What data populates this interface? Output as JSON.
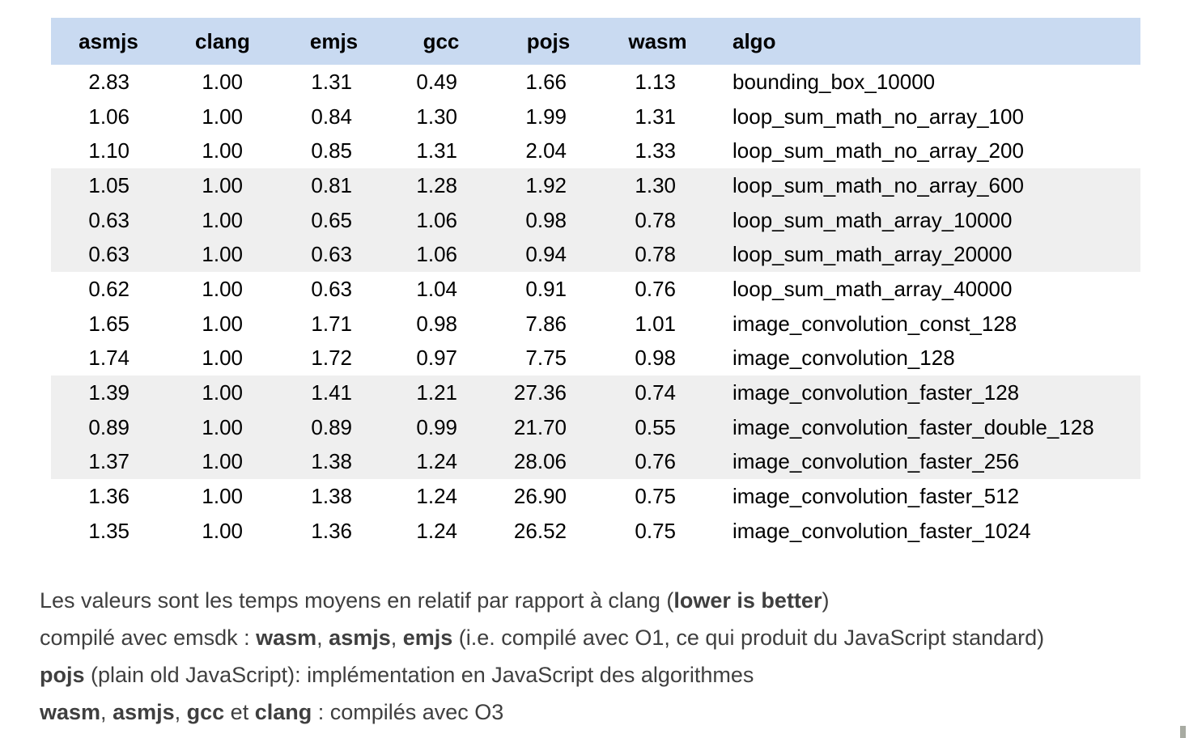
{
  "table": {
    "columns": [
      {
        "label": "asmjs",
        "kind": "num"
      },
      {
        "label": "clang",
        "kind": "num"
      },
      {
        "label": "emjs",
        "kind": "num"
      },
      {
        "label": "gcc",
        "kind": "num"
      },
      {
        "label": "pojs",
        "kind": "num"
      },
      {
        "label": "wasm",
        "kind": "num"
      },
      {
        "label": "algo",
        "kind": "text"
      }
    ],
    "rows": [
      {
        "values": [
          "2.83",
          "1.00",
          "1.31",
          "0.49",
          "1.66",
          "1.13"
        ],
        "algo": "bounding_box_10000",
        "shaded": false
      },
      {
        "values": [
          "1.06",
          "1.00",
          "0.84",
          "1.30",
          "1.99",
          "1.31"
        ],
        "algo": "loop_sum_math_no_array_100",
        "shaded": false
      },
      {
        "values": [
          "1.10",
          "1.00",
          "0.85",
          "1.31",
          "2.04",
          "1.33"
        ],
        "algo": "loop_sum_math_no_array_200",
        "shaded": false
      },
      {
        "values": [
          "1.05",
          "1.00",
          "0.81",
          "1.28",
          "1.92",
          "1.30"
        ],
        "algo": "loop_sum_math_no_array_600",
        "shaded": true
      },
      {
        "values": [
          "0.63",
          "1.00",
          "0.65",
          "1.06",
          "0.98",
          "0.78"
        ],
        "algo": "loop_sum_math_array_10000",
        "shaded": true
      },
      {
        "values": [
          "0.63",
          "1.00",
          "0.63",
          "1.06",
          "0.94",
          "0.78"
        ],
        "algo": "loop_sum_math_array_20000",
        "shaded": true
      },
      {
        "values": [
          "0.62",
          "1.00",
          "0.63",
          "1.04",
          "0.91",
          "0.76"
        ],
        "algo": "loop_sum_math_array_40000",
        "shaded": false
      },
      {
        "values": [
          "1.65",
          "1.00",
          "1.71",
          "0.98",
          "7.86",
          "1.01"
        ],
        "algo": "image_convolution_const_128",
        "shaded": false
      },
      {
        "values": [
          "1.74",
          "1.00",
          "1.72",
          "0.97",
          "7.75",
          "0.98"
        ],
        "algo": "image_convolution_128",
        "shaded": false
      },
      {
        "values": [
          "1.39",
          "1.00",
          "1.41",
          "1.21",
          "27.36",
          "0.74"
        ],
        "algo": "image_convolution_faster_128",
        "shaded": true
      },
      {
        "values": [
          "0.89",
          "1.00",
          "0.89",
          "0.99",
          "21.70",
          "0.55"
        ],
        "algo": "image_convolution_faster_double_128",
        "shaded": true
      },
      {
        "values": [
          "1.37",
          "1.00",
          "1.38",
          "1.24",
          "28.06",
          "0.76"
        ],
        "algo": "image_convolution_faster_256",
        "shaded": true
      },
      {
        "values": [
          "1.36",
          "1.00",
          "1.38",
          "1.24",
          "26.90",
          "0.75"
        ],
        "algo": "image_convolution_faster_512",
        "shaded": false
      },
      {
        "values": [
          "1.35",
          "1.00",
          "1.36",
          "1.24",
          "26.52",
          "0.75"
        ],
        "algo": "image_convolution_faster_1024",
        "shaded": false
      }
    ]
  },
  "footnotes": {
    "lines": [
      {
        "segments": [
          {
            "text": "Les valeurs sont les temps moyens en relatif par rapport à clang (",
            "bold": false
          },
          {
            "text": "lower is better",
            "bold": true
          },
          {
            "text": ")",
            "bold": false
          }
        ]
      },
      {
        "segments": [
          {
            "text": "compilé avec emsdk : ",
            "bold": false
          },
          {
            "text": "wasm",
            "bold": true
          },
          {
            "text": ", ",
            "bold": false
          },
          {
            "text": "asmjs",
            "bold": true
          },
          {
            "text": ", ",
            "bold": false
          },
          {
            "text": "emjs",
            "bold": true
          },
          {
            "text": " (i.e. compilé avec O1, ce qui produit du JavaScript standard)",
            "bold": false
          }
        ]
      },
      {
        "segments": [
          {
            "text": "pojs",
            "bold": true
          },
          {
            "text": " (plain old JavaScript): implémentation en JavaScript des algorithmes",
            "bold": false
          }
        ]
      },
      {
        "segments": [
          {
            "text": "wasm",
            "bold": true
          },
          {
            "text": ", ",
            "bold": false
          },
          {
            "text": "asmjs",
            "bold": true
          },
          {
            "text": ", ",
            "bold": false
          },
          {
            "text": "gcc",
            "bold": true
          },
          {
            "text": " et ",
            "bold": false
          },
          {
            "text": "clang",
            "bold": true
          },
          {
            "text": " : compilés avec O3",
            "bold": false
          }
        ]
      }
    ]
  },
  "colors": {
    "header_bg": "#c9daf1",
    "band_bg": "#efefef",
    "table_text": "#000000",
    "footnote_text": "#3f3f3f",
    "scrollbar_nub": "#a8aba2"
  }
}
